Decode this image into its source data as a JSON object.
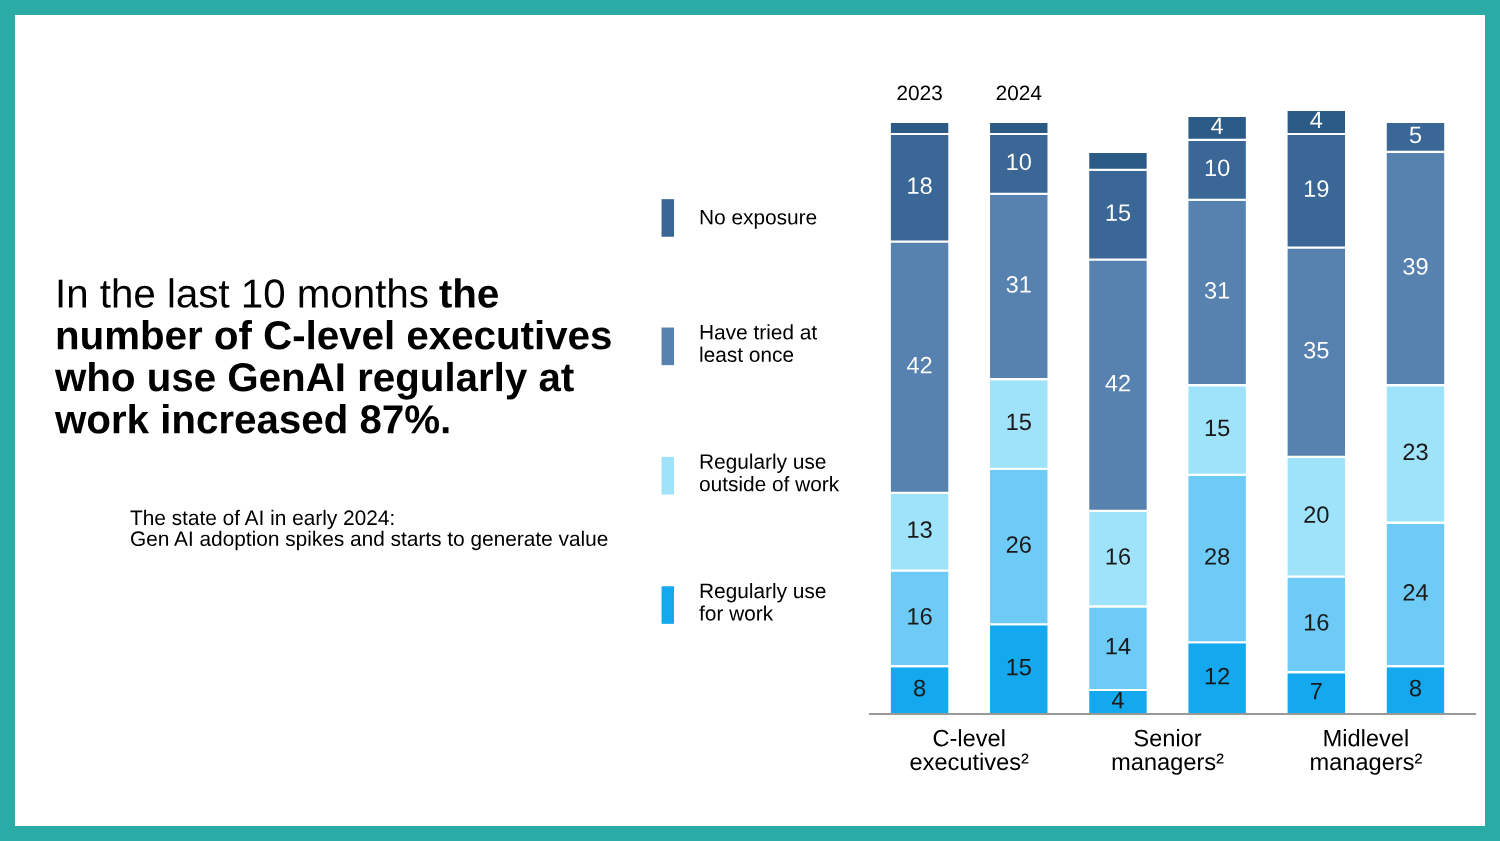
{
  "chart_data": {
    "type": "bar",
    "stacked": true,
    "title": "In the last 10 months",
    "subtitle": "the\nnumber of C-level executives\nwho use GenAI regularly at\nwork increased 87%.",
    "annotations": [
      "The state of AI in early 2024:\nGen AI adoption spikes and starts to generate value",
      "C-level\nexecutives²",
      "Senior\nmanagers²",
      "Midlevel\nmanagers²"
    ],
    "categories": [
      "2023",
      "2024",
      null,
      null,
      null,
      null
    ],
    "series": [
      {
        "name": "Regularly use\nfor work",
        "color": "#14a8ef",
        "values": [
          8,
          15,
          4,
          12,
          7,
          8
        ],
        "value_labels": [
          "8",
          "15",
          "4",
          "12",
          "7",
          "8"
        ]
      },
      {
        "color": "#6ecbf5",
        "values": [
          16,
          26,
          14,
          28,
          16,
          24
        ],
        "value_labels": [
          "16",
          "26",
          "14",
          "28",
          "16",
          "24"
        ]
      },
      {
        "name": "Regularly use\noutside of work",
        "color": "#9fe3fb",
        "values": [
          13,
          15,
          16,
          15,
          20,
          23
        ],
        "value_labels": [
          "13",
          "15",
          "16",
          "15",
          "20",
          "23"
        ]
      },
      {
        "name": "Have tried at\nleast once",
        "color": "#5782b0",
        "values": [
          42,
          31,
          42,
          31,
          35,
          39
        ],
        "value_labels": [
          "42",
          "31",
          "42",
          "31",
          "35",
          "39"
        ]
      },
      {
        "name": "No exposure",
        "color": "#3b6797",
        "values": [
          18,
          10,
          15,
          10,
          19,
          5
        ],
        "value_labels": [
          "18",
          "10",
          "15",
          "10",
          "19",
          "5"
        ]
      },
      {
        "color": "#2c5a86",
        "values": [
          2,
          2,
          3,
          4,
          4,
          null
        ],
        "value_labels": [
          null,
          null,
          null,
          "4",
          "4",
          null
        ]
      }
    ],
    "legend": "left"
  }
}
